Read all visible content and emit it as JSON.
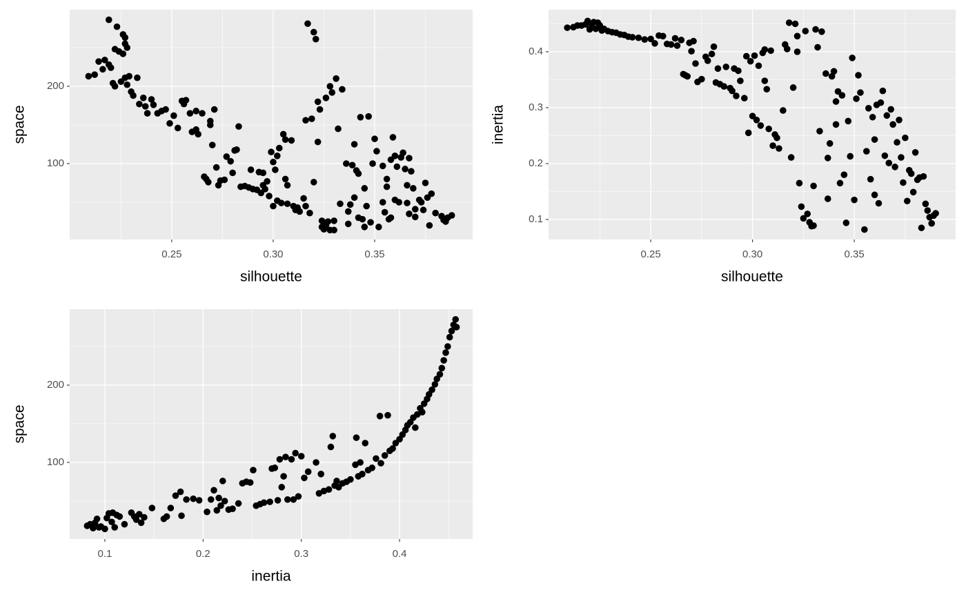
{
  "chart_data": [
    {
      "type": "scatter",
      "xlabel": "silhouette",
      "ylabel": "space",
      "color": "#000000",
      "panel_background": "#ebebeb",
      "grid": true,
      "xlim": [
        0.1997,
        0.3983
      ],
      "ylim": [
        1.8,
        299.1
      ],
      "xticks": [
        0.25,
        {
          "value": 0.3,
          "label": "0.30"
        },
        0.35
      ],
      "yticks": [
        100,
        200
      ],
      "x_minor_ticks": [
        0.225,
        0.275,
        0.325,
        0.375
      ],
      "y_minor_ticks": [
        50,
        150,
        250
      ],
      "x": [
        0.209,
        0.212,
        0.214,
        0.216,
        0.217,
        0.219,
        0.22,
        0.219,
        0.221,
        0.222,
        0.222,
        0.223,
        0.224,
        0.225,
        0.226,
        0.226,
        0.227,
        0.227,
        0.228,
        0.227,
        0.228,
        0.229,
        0.23,
        0.231,
        0.233,
        0.234,
        0.236,
        0.237,
        0.238,
        0.24,
        0.241,
        0.243,
        0.245,
        0.247,
        0.249,
        0.251,
        0.253,
        0.255,
        0.256,
        0.257,
        0.259,
        0.26,
        0.262,
        0.262,
        0.263,
        0.265,
        0.266,
        0.267,
        0.268,
        0.269,
        0.269,
        0.27,
        0.271,
        0.272,
        0.273,
        0.274,
        0.276,
        0.277,
        0.279,
        0.28,
        0.281,
        0.282,
        0.283,
        0.284,
        0.286,
        0.288,
        0.289,
        0.29,
        0.292,
        0.293,
        0.294,
        0.295,
        0.295,
        0.296,
        0.297,
        0.298,
        0.299,
        0.3,
        0.3,
        0.301,
        0.302,
        0.302,
        0.303,
        0.304,
        0.305,
        0.306,
        0.306,
        0.307,
        0.307,
        0.309,
        0.31,
        0.311,
        0.312,
        0.313,
        0.315,
        0.316,
        0.316,
        0.317,
        0.318,
        0.319,
        0.32,
        0.32,
        0.321,
        0.322,
        0.322,
        0.323,
        0.324,
        0.324,
        0.325,
        0.326,
        0.326,
        0.327,
        0.328,
        0.328,
        0.329,
        0.33,
        0.33,
        0.331,
        0.332,
        0.333,
        0.334,
        0.336,
        0.337,
        0.337,
        0.338,
        0.339,
        0.34,
        0.34,
        0.341,
        0.342,
        0.342,
        0.343,
        0.344,
        0.345,
        0.345,
        0.346,
        0.347,
        0.348,
        0.349,
        0.35,
        0.351,
        0.352,
        0.354,
        0.354,
        0.355,
        0.356,
        0.356,
        0.357,
        0.358,
        0.358,
        0.359,
        0.36,
        0.36,
        0.361,
        0.362,
        0.363,
        0.364,
        0.365,
        0.366,
        0.366,
        0.367,
        0.367,
        0.368,
        0.369,
        0.37,
        0.37,
        0.372,
        0.373,
        0.374,
        0.375,
        0.376,
        0.377,
        0.378,
        0.38,
        0.383,
        0.384,
        0.385,
        0.386,
        0.388
      ],
      "values": [
        213,
        215,
        232,
        222,
        234,
        228,
        224,
        286,
        204,
        200,
        248,
        277,
        245,
        206,
        242,
        267,
        263,
        255,
        250,
        211,
        202,
        213,
        193,
        188,
        211,
        177,
        185,
        174,
        165,
        183,
        176,
        165,
        168,
        170,
        152,
        162,
        146,
        181,
        177,
        182,
        165,
        141,
        144,
        168,
        138,
        165,
        83,
        80,
        76,
        155,
        150,
        124,
        170,
        95,
        72,
        78,
        79,
        109,
        103,
        88,
        117,
        118,
        148,
        70,
        71,
        69,
        92,
        67,
        66,
        89,
        62,
        88,
        72,
        67,
        77,
        58,
        115,
        102,
        45,
        92,
        52,
        110,
        120,
        49,
        138,
        131,
        80,
        72,
        48,
        130,
        45,
        40,
        43,
        38,
        55,
        45,
        156,
        281,
        36,
        158,
        270,
        76,
        261,
        180,
        128,
        170,
        26,
        18,
        15,
        185,
        20,
        25,
        14,
        200,
        192,
        14,
        26,
        210,
        145,
        48,
        196,
        100,
        22,
        38,
        47,
        98,
        125,
        56,
        91,
        87,
        30,
        160,
        28,
        68,
        18,
        45,
        161,
        24,
        100,
        132,
        116,
        18,
        50,
        97,
        37,
        80,
        70,
        28,
        105,
        30,
        134,
        110,
        53,
        96,
        50,
        108,
        114,
        93,
        49,
        72,
        107,
        35,
        90,
        68,
        41,
        31,
        53,
        50,
        40,
        75,
        56,
        20,
        61,
        36,
        32,
        27,
        25,
        30,
        33
      ]
    },
    {
      "type": "scatter",
      "xlabel": "silhouette",
      "ylabel": "inertia",
      "color": "#000000",
      "panel_background": "#ebebeb",
      "grid": true,
      "xlim": [
        0.1998,
        0.3998
      ],
      "ylim": [
        0.0642,
        0.4753
      ],
      "xticks": [
        0.25,
        {
          "value": 0.3,
          "label": "0.30"
        },
        0.35
      ],
      "yticks": [
        0.1,
        0.2,
        0.3,
        0.4
      ],
      "x_minor_ticks": [
        0.225,
        0.275,
        0.325,
        0.375
      ],
      "y_minor_ticks": [
        0.15,
        0.25,
        0.35,
        0.45
      ],
      "x": [
        0.209,
        0.212,
        0.214,
        0.216,
        0.218,
        0.219,
        0.22,
        0.221,
        0.222,
        0.223,
        0.224,
        0.225,
        0.226,
        0.227,
        0.229,
        0.231,
        0.233,
        0.235,
        0.237,
        0.239,
        0.241,
        0.244,
        0.247,
        0.25,
        0.252,
        0.254,
        0.256,
        0.258,
        0.26,
        0.262,
        0.263,
        0.265,
        0.266,
        0.267,
        0.268,
        0.269,
        0.27,
        0.271,
        0.272,
        0.273,
        0.275,
        0.277,
        0.278,
        0.28,
        0.281,
        0.282,
        0.283,
        0.284,
        0.286,
        0.287,
        0.289,
        0.29,
        0.291,
        0.292,
        0.293,
        0.294,
        0.296,
        0.297,
        0.298,
        0.299,
        0.3,
        0.301,
        0.302,
        0.303,
        0.304,
        0.305,
        0.306,
        0.306,
        0.307,
        0.308,
        0.309,
        0.31,
        0.311,
        0.312,
        0.313,
        0.315,
        0.316,
        0.317,
        0.318,
        0.319,
        0.32,
        0.321,
        0.322,
        0.322,
        0.323,
        0.324,
        0.325,
        0.326,
        0.327,
        0.328,
        0.329,
        0.33,
        0.33,
        0.331,
        0.332,
        0.333,
        0.334,
        0.336,
        0.337,
        0.337,
        0.338,
        0.339,
        0.34,
        0.341,
        0.341,
        0.342,
        0.343,
        0.344,
        0.345,
        0.346,
        0.347,
        0.348,
        0.349,
        0.35,
        0.351,
        0.352,
        0.353,
        0.355,
        0.356,
        0.357,
        0.358,
        0.359,
        0.36,
        0.36,
        0.361,
        0.362,
        0.363,
        0.364,
        0.365,
        0.366,
        0.367,
        0.368,
        0.369,
        0.37,
        0.371,
        0.372,
        0.373,
        0.374,
        0.375,
        0.376,
        0.377,
        0.378,
        0.379,
        0.38,
        0.381,
        0.382,
        0.383,
        0.384,
        0.385,
        0.386,
        0.387,
        0.388,
        0.389,
        0.39
      ],
      "values": [
        0.443,
        0.444,
        0.447,
        0.447,
        0.449,
        0.455,
        0.44,
        0.449,
        0.453,
        0.441,
        0.452,
        0.447,
        0.438,
        0.441,
        0.437,
        0.435,
        0.434,
        0.431,
        0.43,
        0.427,
        0.426,
        0.425,
        0.422,
        0.423,
        0.415,
        0.429,
        0.428,
        0.414,
        0.413,
        0.424,
        0.411,
        0.421,
        0.36,
        0.358,
        0.356,
        0.416,
        0.401,
        0.419,
        0.379,
        0.346,
        0.351,
        0.391,
        0.384,
        0.396,
        0.409,
        0.345,
        0.37,
        0.342,
        0.338,
        0.373,
        0.335,
        0.33,
        0.37,
        0.321,
        0.366,
        0.348,
        0.317,
        0.392,
        0.255,
        0.383,
        0.285,
        0.393,
        0.278,
        0.375,
        0.268,
        0.398,
        0.404,
        0.348,
        0.333,
        0.262,
        0.402,
        0.232,
        0.252,
        0.246,
        0.227,
        0.295,
        0.413,
        0.405,
        0.452,
        0.211,
        0.336,
        0.45,
        0.428,
        0.4,
        0.165,
        0.123,
        0.102,
        0.437,
        0.11,
        0.095,
        0.088,
        0.089,
        0.16,
        0.44,
        0.408,
        0.258,
        0.436,
        0.361,
        0.137,
        0.21,
        0.236,
        0.356,
        0.365,
        0.311,
        0.27,
        0.329,
        0.165,
        0.322,
        0.18,
        0.094,
        0.276,
        0.213,
        0.389,
        0.135,
        0.316,
        0.358,
        0.327,
        0.082,
        0.222,
        0.299,
        0.172,
        0.283,
        0.144,
        0.243,
        0.305,
        0.129,
        0.309,
        0.33,
        0.214,
        0.286,
        0.201,
        0.297,
        0.27,
        0.194,
        0.238,
        0.278,
        0.211,
        0.166,
        0.246,
        0.133,
        0.188,
        0.182,
        0.149,
        0.22,
        0.171,
        0.175,
        0.085,
        0.177,
        0.128,
        0.116,
        0.104,
        0.093,
        0.107,
        0.111
      ]
    },
    {
      "type": "scatter",
      "xlabel": "inertia",
      "ylabel": "space",
      "color": "#000000",
      "panel_background": "#ebebeb",
      "grid": true,
      "xlim": [
        0.0642,
        0.4744
      ],
      "ylim": [
        0.9,
        298.2
      ],
      "xticks": [
        0.1,
        0.2,
        0.3,
        0.4
      ],
      "yticks": [
        100,
        200
      ],
      "x_minor_ticks": [
        0.15,
        0.25,
        0.35,
        0.45
      ],
      "y_minor_ticks": [
        50,
        150,
        250
      ],
      "x": [
        0.082,
        0.085,
        0.088,
        0.09,
        0.092,
        0.094,
        0.096,
        0.1,
        0.102,
        0.104,
        0.107,
        0.108,
        0.11,
        0.112,
        0.115,
        0.12,
        0.127,
        0.13,
        0.132,
        0.135,
        0.137,
        0.14,
        0.148,
        0.16,
        0.163,
        0.167,
        0.172,
        0.177,
        0.178,
        0.183,
        0.19,
        0.196,
        0.204,
        0.208,
        0.211,
        0.214,
        0.216,
        0.218,
        0.22,
        0.222,
        0.226,
        0.23,
        0.236,
        0.24,
        0.244,
        0.248,
        0.251,
        0.254,
        0.258,
        0.262,
        0.268,
        0.27,
        0.273,
        0.276,
        0.278,
        0.28,
        0.282,
        0.284,
        0.286,
        0.29,
        0.292,
        0.294,
        0.297,
        0.3,
        0.303,
        0.307,
        0.315,
        0.318,
        0.32,
        0.323,
        0.328,
        0.33,
        0.332,
        0.334,
        0.336,
        0.338,
        0.342,
        0.346,
        0.35,
        0.355,
        0.356,
        0.358,
        0.36,
        0.362,
        0.365,
        0.368,
        0.372,
        0.376,
        0.38,
        0.381,
        0.385,
        0.388,
        0.39,
        0.393,
        0.396,
        0.4,
        0.403,
        0.406,
        0.408,
        0.411,
        0.414,
        0.416,
        0.418,
        0.421,
        0.423,
        0.425,
        0.428,
        0.43,
        0.433,
        0.436,
        0.438,
        0.441,
        0.443,
        0.445,
        0.447,
        0.449,
        0.451,
        0.453,
        0.455,
        0.457,
        0.458
      ],
      "values": [
        18,
        20,
        15,
        22,
        27,
        16,
        17,
        14,
        28,
        34,
        23,
        35,
        16,
        32,
        30,
        20,
        35,
        30,
        26,
        33,
        22,
        29,
        41,
        27,
        30,
        41,
        57,
        62,
        31,
        52,
        53,
        51,
        36,
        52,
        64,
        38,
        54,
        44,
        76,
        50,
        39,
        40,
        47,
        73,
        75,
        74,
        90,
        44,
        46,
        48,
        49,
        92,
        93,
        51,
        104,
        68,
        82,
        107,
        52,
        104,
        52,
        112,
        56,
        108,
        80,
        88,
        100,
        60,
        85,
        63,
        65,
        120,
        134,
        70,
        76,
        68,
        73,
        75,
        78,
        97,
        132,
        82,
        100,
        85,
        125,
        90,
        93,
        105,
        160,
        99,
        109,
        161,
        115,
        118,
        125,
        130,
        136,
        142,
        148,
        152,
        158,
        145,
        162,
        170,
        165,
        176,
        182,
        188,
        194,
        201,
        208,
        214,
        222,
        232,
        242,
        250,
        262,
        270,
        278,
        285,
        275
      ]
    }
  ]
}
